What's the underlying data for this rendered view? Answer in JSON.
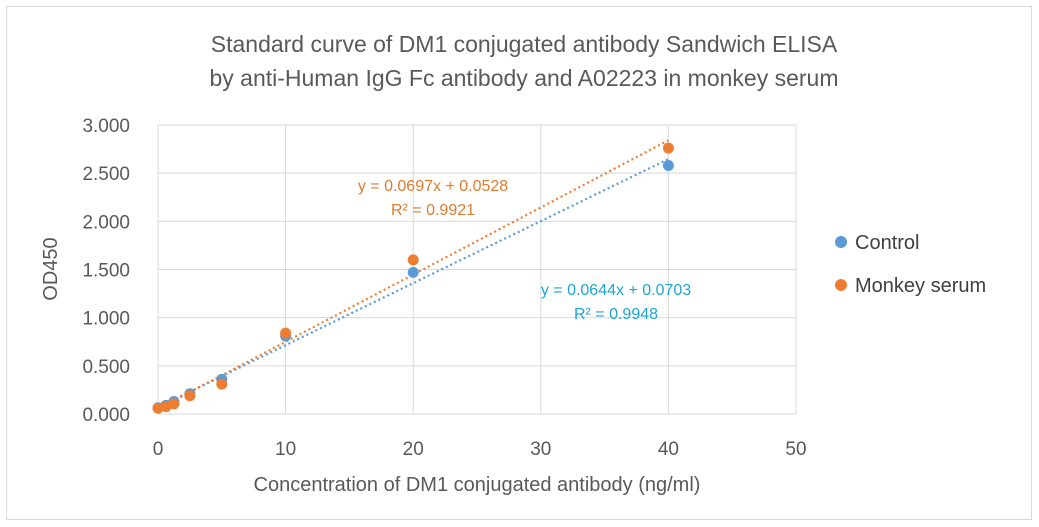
{
  "chart_data": {
    "type": "scatter",
    "title_lines": [
      "Standard curve of DM1 conjugated antibody Sandwich ELISA",
      "by anti-Human IgG Fc antibody and A02223 in monkey serum"
    ],
    "xlabel": "Concentration of DM1 conjugated antibody (ng/ml)",
    "ylabel": "OD450",
    "xlim": [
      0,
      50
    ],
    "ylim": [
      0,
      3
    ],
    "x_ticks": [
      "0",
      "10",
      "20",
      "30",
      "40",
      "50"
    ],
    "y_ticks": [
      "0.000",
      "0.500",
      "1.000",
      "1.500",
      "2.000",
      "2.500",
      "3.000"
    ],
    "grid": true,
    "legend_position": "right",
    "series": [
      {
        "name": "Control",
        "color": "#5b9bd5",
        "x": [
          0,
          0.625,
          1.25,
          2.5,
          5,
          10,
          20,
          40
        ],
        "y": [
          0.065,
          0.09,
          0.13,
          0.21,
          0.36,
          0.81,
          1.47,
          2.58
        ],
        "trendline": {
          "slope": 0.0644,
          "intercept": 0.0703,
          "color": "#5b9bd5",
          "equation": "y = 0.0644x + 0.0703",
          "r2": "R² = 0.9948",
          "label_color": "#1aa6d8"
        }
      },
      {
        "name": "Monkey serum",
        "color": "#ed7d31",
        "x": [
          0,
          0.625,
          1.25,
          2.5,
          5,
          10,
          20,
          40
        ],
        "y": [
          0.06,
          0.075,
          0.105,
          0.19,
          0.31,
          0.84,
          1.6,
          2.76
        ],
        "trendline": {
          "slope": 0.0697,
          "intercept": 0.0528,
          "color": "#ed7d31",
          "equation": "y = 0.0697x + 0.0528",
          "r2": "R² = 0.9921",
          "label_color": "#e07b2f"
        }
      }
    ]
  }
}
